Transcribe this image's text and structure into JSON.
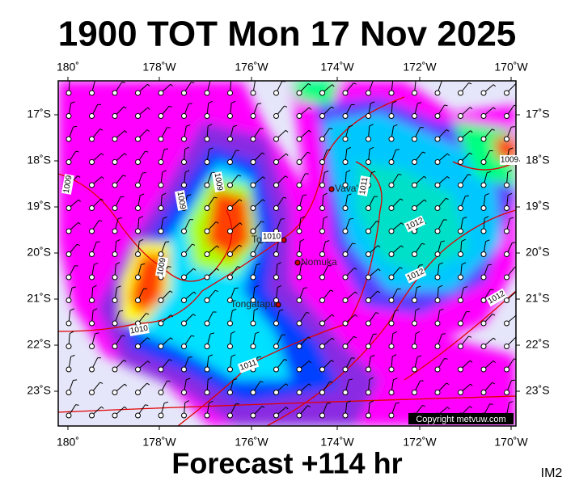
{
  "title": "1900 TOT Mon 17 Nov 2025",
  "footer": "Forecast +114 hr",
  "corner_label": "IM2",
  "copyright": "Copyright metvuw.com",
  "longitude_labels": [
    "180˚",
    "178˚W",
    "176˚W",
    "174˚W",
    "172˚W",
    "170˚W"
  ],
  "latitude_labels": [
    "17˚S",
    "18˚S",
    "19˚S",
    "20˚S",
    "21˚S",
    "22˚S",
    "23˚S"
  ],
  "places": [
    "Vava'u",
    "Tofua",
    "Nomuka",
    "Tongatapu"
  ],
  "isobar_labels": [
    "1009",
    "1009",
    "1009",
    "1009",
    "1010",
    "1010",
    "1011",
    "1011",
    "1012",
    "1012",
    "1012",
    "1009"
  ]
}
